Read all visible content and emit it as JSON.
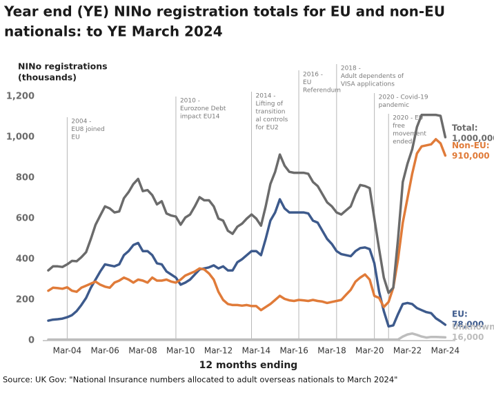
{
  "chart_data": {
    "type": "line",
    "title": [
      "Year end (YE) NINo registration totals for EU and non-EU",
      "nationals: to YE March 2024"
    ],
    "y_label": [
      "NINo registrations",
      "(thousands)"
    ],
    "x_label": "12 months ending",
    "source": "Source: UK Gov: \"National Insurance numbers allocated to adult overseas nationals to March 2024\"",
    "categories": [
      null,
      null,
      null,
      null,
      "Mar-04",
      null,
      null,
      null,
      null,
      null,
      null,
      null,
      "Mar-06",
      null,
      null,
      null,
      null,
      null,
      null,
      null,
      "Mar-08",
      null,
      null,
      null,
      null,
      null,
      null,
      null,
      "Mar-10",
      null,
      null,
      null,
      null,
      null,
      null,
      null,
      "Mar-12",
      null,
      null,
      null,
      null,
      null,
      null,
      null,
      "Mar-14",
      null,
      null,
      null,
      null,
      null,
      null,
      null,
      "Mar-16",
      null,
      null,
      null,
      null,
      null,
      null,
      null,
      "Mar-18",
      null,
      null,
      null,
      null,
      null,
      null,
      null,
      "Mar-20",
      null,
      null,
      null,
      null,
      null,
      null,
      null,
      "Mar-22",
      null,
      null,
      null,
      null,
      null,
      null,
      null,
      "Mar-24"
    ],
    "series": [
      {
        "name": "Total:",
        "end_label": "1,000,000",
        "color": "#6b6b6b",
        "values": [
          345,
          365,
          365,
          362,
          375,
          392,
          390,
          410,
          435,
          500,
          570,
          615,
          660,
          650,
          630,
          635,
          700,
          730,
          770,
          795,
          735,
          740,
          715,
          670,
          685,
          625,
          615,
          610,
          570,
          605,
          620,
          660,
          705,
          690,
          690,
          660,
          600,
          590,
          540,
          525,
          560,
          575,
          600,
          620,
          600,
          565,
          660,
          770,
          830,
          915,
          860,
          830,
          825,
          825,
          825,
          820,
          780,
          760,
          720,
          680,
          660,
          630,
          620,
          640,
          660,
          720,
          765,
          760,
          750,
          600,
          450,
          310,
          235,
          260,
          500,
          780,
          870,
          940,
          1050,
          1110,
          1110,
          1110,
          1110,
          1105,
          1000
        ]
      },
      {
        "name": "Non-EU:",
        "end_label": "910,000",
        "color": "#e07b39",
        "values": [
          245,
          260,
          258,
          255,
          262,
          245,
          240,
          260,
          270,
          280,
          290,
          275,
          265,
          260,
          285,
          295,
          310,
          300,
          285,
          300,
          295,
          285,
          310,
          295,
          295,
          300,
          290,
          285,
          300,
          320,
          330,
          340,
          355,
          350,
          330,
          300,
          240,
          200,
          180,
          175,
          175,
          172,
          175,
          170,
          170,
          150,
          165,
          180,
          200,
          220,
          205,
          198,
          195,
          200,
          198,
          195,
          200,
          195,
          192,
          185,
          190,
          195,
          200,
          225,
          250,
          290,
          310,
          325,
          300,
          220,
          210,
          165,
          190,
          260,
          400,
          580,
          700,
          820,
          920,
          955,
          960,
          965,
          990,
          970,
          910
        ]
      },
      {
        "name": "EU:",
        "end_label": "78,000",
        "color": "#3d5a8c",
        "values": [
          98,
          103,
          105,
          108,
          115,
          125,
          145,
          175,
          210,
          260,
          300,
          340,
          375,
          370,
          365,
          375,
          420,
          440,
          470,
          480,
          440,
          440,
          420,
          380,
          375,
          340,
          325,
          310,
          275,
          285,
          300,
          325,
          350,
          355,
          360,
          370,
          355,
          365,
          345,
          345,
          385,
          400,
          420,
          440,
          440,
          420,
          500,
          590,
          630,
          695,
          650,
          630,
          630,
          630,
          630,
          625,
          590,
          580,
          540,
          500,
          475,
          440,
          425,
          420,
          415,
          440,
          455,
          458,
          450,
          380,
          240,
          145,
          70,
          75,
          130,
          180,
          185,
          180,
          160,
          150,
          140,
          135,
          110,
          95,
          78
        ]
      },
      {
        "name": "Unknown:",
        "end_label": "16,000",
        "color": "#bdbdbd",
        "values": [
          5,
          5,
          5,
          5,
          5,
          5,
          5,
          5,
          5,
          5,
          5,
          5,
          5,
          5,
          5,
          5,
          5,
          5,
          5,
          5,
          5,
          5,
          5,
          5,
          5,
          5,
          5,
          5,
          5,
          5,
          5,
          5,
          5,
          5,
          5,
          5,
          5,
          5,
          5,
          5,
          5,
          5,
          5,
          5,
          5,
          5,
          5,
          5,
          5,
          5,
          5,
          5,
          5,
          5,
          5,
          5,
          5,
          5,
          5,
          5,
          5,
          5,
          5,
          5,
          5,
          5,
          5,
          5,
          5,
          5,
          5,
          5,
          5,
          5,
          5,
          20,
          30,
          35,
          28,
          20,
          15,
          18,
          18,
          17,
          16
        ]
      }
    ],
    "ylim": [
      0,
      1200
    ],
    "yticks": [
      0,
      200,
      400,
      600,
      800,
      {
        "value": 1000,
        "label": "1,000"
      },
      {
        "value": 1200,
        "label": "1,200"
      }
    ],
    "grid": false,
    "annotations": [
      {
        "text": [
          "2004 -",
          "EU8 joined",
          "EU"
        ]
      },
      {
        "text": [
          "2010 -",
          "Eurozone Debt",
          "impact EU14"
        ]
      },
      {
        "text": [
          "2014 -",
          "Lifting of",
          "transition",
          "al controls",
          "for EU2"
        ]
      },
      {
        "text": [
          "2016 -",
          "EU",
          "Referendum"
        ]
      },
      {
        "text": [
          "2018 -",
          "Adult dependents of",
          "VISA applications"
        ]
      },
      {
        "text": [
          "2020 - Covid-19",
          "pandemic"
        ]
      },
      {
        "text": [
          "2020 - EU",
          "free",
          "movement",
          "ended"
        ]
      }
    ]
  }
}
